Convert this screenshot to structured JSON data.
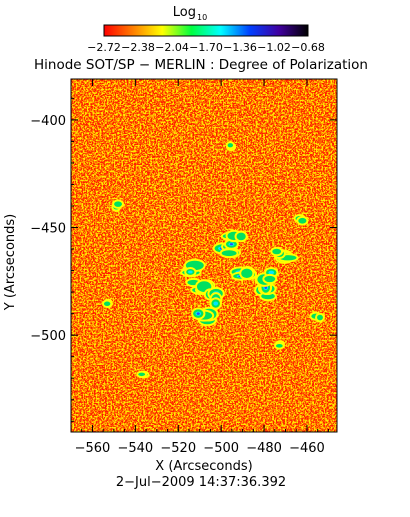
{
  "colorbar": {
    "label": "Log",
    "label_sub": "10",
    "colors": [
      "#ff0000",
      "#ff7f00",
      "#ffff00",
      "#00ff40",
      "#00ffff",
      "#0040ff",
      "#4000a0",
      "#000000"
    ],
    "tick_labels": [
      "−2.72",
      "−2.38",
      "−2.04",
      "−1.70",
      "−1.36",
      "−1.02",
      "−0.68"
    ]
  },
  "chart_data": {
    "type": "heatmap",
    "title": "Hinode SOT/SP − MERLIN : Degree of Polarization",
    "xlabel": "X (Arcseconds)",
    "ylabel": "Y (Arcseconds)",
    "xlim": [
      -570,
      -446
    ],
    "ylim": [
      -545,
      -381
    ],
    "x_ticks": [
      -560,
      -540,
      -520,
      -500,
      -480,
      -460
    ],
    "y_ticks": [
      -400,
      -450,
      -500
    ],
    "x_tick_labels": [
      "−560",
      "−540",
      "−520",
      "−500",
      "−480",
      "−460"
    ],
    "y_tick_labels": [
      "−400",
      "−450",
      "−500"
    ],
    "color_range_log10": [
      -2.72,
      -0.68
    ],
    "value_distribution": "mostly low values (red/orange background) with scattered yellow speckle; a cluster of higher values (green/cyan/blue) near x=-510 to -470, y=-455 to -490",
    "high_patches": [
      {
        "x": -490,
        "y": -472
      },
      {
        "x": -481,
        "y": -480
      },
      {
        "x": -510,
        "y": -477
      },
      {
        "x": -498,
        "y": -460
      },
      {
        "x": -472,
        "y": -463
      },
      {
        "x": -502,
        "y": -483
      },
      {
        "x": -515,
        "y": -469
      },
      {
        "x": -477,
        "y": -473
      },
      {
        "x": -493,
        "y": -456
      },
      {
        "x": -508,
        "y": -492
      },
      {
        "x": -553,
        "y": -485
      },
      {
        "x": -548,
        "y": -440
      },
      {
        "x": -495,
        "y": -412
      },
      {
        "x": -463,
        "y": -446
      },
      {
        "x": -455,
        "y": -492
      },
      {
        "x": -473,
        "y": -505
      },
      {
        "x": -537,
        "y": -518
      }
    ]
  },
  "timestamp": "2−Jul−2009 14:37:36.392"
}
